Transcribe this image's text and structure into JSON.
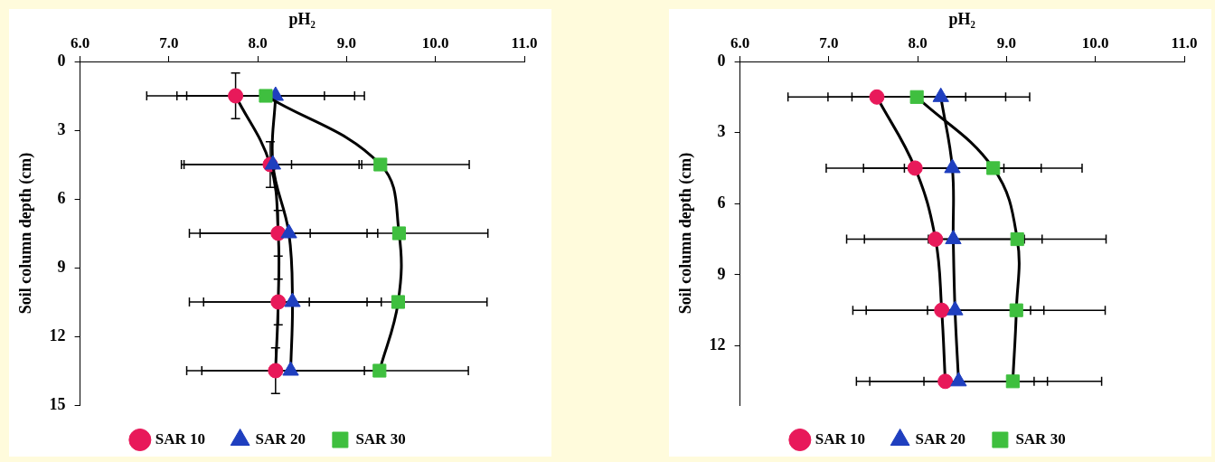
{
  "chart_data": [
    {
      "type": "line",
      "xlabel": "pH₂",
      "ylabel": "Soil column depth (cm)",
      "xlim": [
        6,
        11
      ],
      "xticks": [
        {
          "value": 6,
          "label": "6.0"
        },
        {
          "value": 7,
          "label": "7.0"
        },
        {
          "value": 8,
          "label": "8.0"
        },
        {
          "value": 9,
          "label": "9.0"
        },
        {
          "value": 10,
          "label": "10.0"
        },
        {
          "value": 11,
          "label": "11.0"
        }
      ],
      "ylim": [
        15,
        0
      ],
      "yticks": [
        0,
        3,
        6,
        9,
        12,
        15
      ],
      "grid": false,
      "legend": "bottom",
      "series": [
        {
          "name": "SAR 10",
          "color": "#e8195a",
          "marker": "circle",
          "x": [
            7.75,
            8.14,
            8.23,
            8.23,
            8.2
          ],
          "values": [
            1.5,
            4.5,
            7.5,
            10.5,
            13.5
          ],
          "xerrors": [
            1,
            1,
            1,
            1,
            1
          ],
          "errors": [
            1,
            1,
            1,
            1,
            1
          ]
        },
        {
          "name": "SAR 20",
          "color": "#1f3fbf",
          "marker": "triangle",
          "x": [
            8.2,
            8.17,
            8.35,
            8.39,
            8.37
          ],
          "values": [
            1.5,
            4.5,
            7.5,
            10.5,
            13.5
          ],
          "xerrors": [
            1,
            1,
            1,
            1,
            1
          ]
        },
        {
          "name": "SAR 30",
          "color": "#3fbf3f",
          "marker": "square",
          "x": [
            8.09,
            9.38,
            9.59,
            9.58,
            9.37
          ],
          "values": [
            1.5,
            4.5,
            7.5,
            10.5,
            13.5
          ],
          "xerrors": [
            1,
            1,
            1,
            1,
            1
          ]
        }
      ]
    },
    {
      "type": "line",
      "xlabel": "pH₂",
      "ylabel": "Soil column depth (cm)",
      "xlim": [
        6,
        11
      ],
      "xticks": [
        {
          "value": 6,
          "label": "6.0"
        },
        {
          "value": 7,
          "label": "7.0"
        },
        {
          "value": 8,
          "label": "8.0"
        },
        {
          "value": 9,
          "label": "9.0"
        },
        {
          "value": 10,
          "label": "10.0"
        },
        {
          "value": 11,
          "label": "11.0"
        }
      ],
      "ylim": [
        14.5,
        0
      ],
      "yticks": [
        0,
        3,
        6,
        9,
        12
      ],
      "grid": false,
      "legend": "bottom",
      "series": [
        {
          "name": "SAR 10",
          "color": "#e8195a",
          "marker": "circle",
          "x": [
            7.54,
            7.97,
            8.2,
            8.27,
            8.31
          ],
          "values": [
            1.5,
            4.5,
            7.5,
            10.5,
            13.5
          ],
          "xerrors": [
            1,
            1,
            1,
            1,
            1
          ]
        },
        {
          "name": "SAR 20",
          "color": "#1f3fbf",
          "marker": "triangle",
          "x": [
            8.26,
            8.39,
            8.4,
            8.42,
            8.46
          ],
          "values": [
            1.5,
            4.5,
            7.5,
            10.5,
            13.5
          ],
          "xerrors": [
            1,
            1,
            1,
            1,
            1
          ]
        },
        {
          "name": "SAR 30",
          "color": "#3fbf3f",
          "marker": "square",
          "x": [
            7.99,
            8.85,
            9.12,
            9.11,
            9.07
          ],
          "values": [
            1.5,
            4.5,
            7.5,
            10.5,
            13.5
          ],
          "xerrors": [
            1,
            1,
            1,
            1,
            1
          ]
        }
      ]
    }
  ]
}
